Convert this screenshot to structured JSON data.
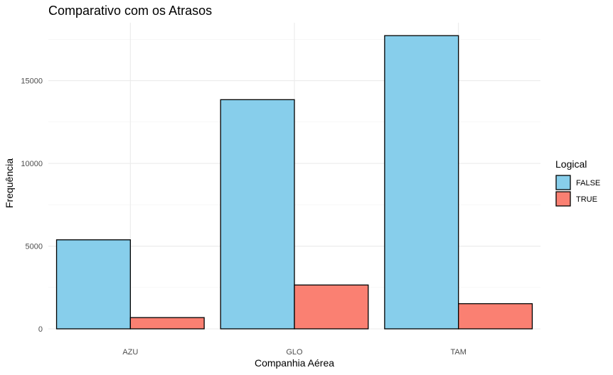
{
  "chart_data": {
    "type": "bar",
    "title": "Comparativo com os Atrasos",
    "xlabel": "Companhia Aérea",
    "ylabel": "Frequência",
    "categories": [
      "AZU",
      "GLO",
      "TAM"
    ],
    "series": [
      {
        "name": "FALSE",
        "values": [
          5380,
          13850,
          17720
        ],
        "color": "#87CEEB"
      },
      {
        "name": "TRUE",
        "values": [
          680,
          2650,
          1520
        ],
        "color": "#FA8072"
      }
    ],
    "ylim": [
      0,
      18500
    ],
    "yticks": [
      0,
      5000,
      10000,
      15000
    ],
    "grid": true,
    "legend": {
      "title": "Logical",
      "position": "right"
    }
  }
}
